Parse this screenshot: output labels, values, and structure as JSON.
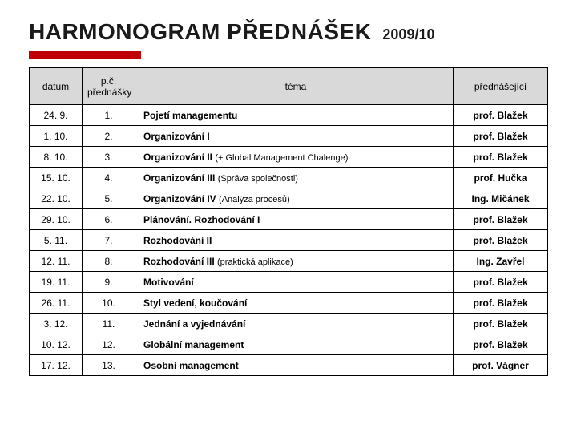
{
  "title": "HARMONOGRAM PŘEDNÁŠEK",
  "year": "2009/10",
  "headers": {
    "date": "datum",
    "num": "p.č. přednášky",
    "topic": "téma",
    "lecturer": "přednášející"
  },
  "rows": [
    {
      "date": "24. 9.",
      "num": "1.",
      "topic": "Pojetí managementu",
      "note": "",
      "lecturer": "prof. Blažek"
    },
    {
      "date": "1. 10.",
      "num": "2.",
      "topic": "Organizování I",
      "note": "",
      "lecturer": "prof. Blažek"
    },
    {
      "date": "8. 10.",
      "num": "3.",
      "topic": "Organizování II ",
      "note": " (+ Global Management Chalenge)",
      "lecturer": "prof. Blažek"
    },
    {
      "date": "15. 10.",
      "num": "4.",
      "topic": "Organizování III ",
      "note": " (Správa společnosti)",
      "lecturer": "prof. Hučka"
    },
    {
      "date": "22. 10.",
      "num": "5.",
      "topic": "Organizování IV ",
      "note": " (Analýza procesů)",
      "lecturer": "Ing. Mičánek"
    },
    {
      "date": "29. 10.",
      "num": "6.",
      "topic": "Plánování. Rozhodování I",
      "note": "",
      "lecturer": "prof. Blažek"
    },
    {
      "date": "5. 11.",
      "num": "7.",
      "topic": "Rozhodování II",
      "note": "",
      "lecturer": "prof. Blažek"
    },
    {
      "date": "12. 11.",
      "num": "8.",
      "topic": "Rozhodování III ",
      "note": " (praktická aplikace)",
      "lecturer": "Ing. Zavřel"
    },
    {
      "date": "19. 11.",
      "num": "9.",
      "topic": "Motivování",
      "note": "",
      "lecturer": "prof. Blažek"
    },
    {
      "date": "26. 11.",
      "num": "10.",
      "topic": "Styl vedení, koučování",
      "note": "",
      "lecturer": "prof. Blažek"
    },
    {
      "date": "3. 12.",
      "num": "11.",
      "topic": "Jednání a vyjednávání",
      "note": "",
      "lecturer": "prof. Blažek"
    },
    {
      "date": "10. 12.",
      "num": "12.",
      "topic": "Globální management",
      "note": "",
      "lecturer": "prof. Blažek"
    },
    {
      "date": "17. 12.",
      "num": "13.",
      "topic": "Osobní management",
      "note": "",
      "lecturer": "prof. Vágner"
    }
  ],
  "colors": {
    "accent": "#c00000",
    "headerBg": "#d9d9d9",
    "border": "#000000",
    "text": "#1a1a1a"
  }
}
